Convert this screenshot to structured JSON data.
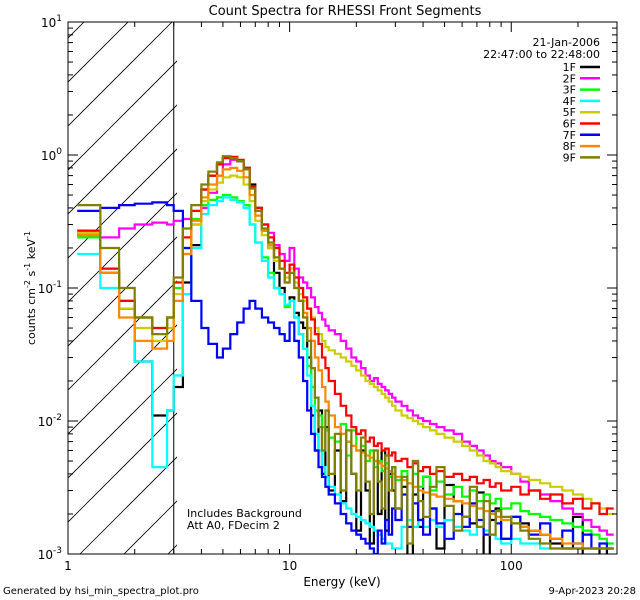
{
  "chart_data": {
    "type": "line",
    "title": "Count Spectra for RHESSI Front Segments",
    "xlabel": "Energy (keV)",
    "ylabel_parts": {
      "base": "counts cm",
      "exp1": "-2",
      "mid": " s",
      "exp2": "-1",
      "end": " keV",
      "exp3": "-1"
    },
    "x_scale": "log",
    "y_scale": "log",
    "xlim": [
      1,
      300
    ],
    "ylim": [
      0.001,
      10
    ],
    "x_ticks": [
      {
        "value": 1,
        "label": "1"
      },
      {
        "value": 10,
        "label": "10"
      },
      {
        "value": 100,
        "label": "100"
      }
    ],
    "y_ticks": [
      {
        "value": 0.001,
        "base": "10",
        "exp": "-3"
      },
      {
        "value": 0.01,
        "base": "10",
        "exp": "-2"
      },
      {
        "value": 0.1,
        "base": "10",
        "exp": "-1"
      },
      {
        "value": 1,
        "base": "10",
        "exp": "0"
      },
      {
        "value": 10,
        "base": "10",
        "exp": "1"
      }
    ],
    "hatched_region_xmax": 3,
    "date_label": "21-Jan-2006",
    "time_label": "22:47:00 to 22:48:00",
    "annotations": [
      "Includes Background",
      "Att A0, FDecim 2"
    ],
    "footer_left": "Generated by hsi_min_spectra_plot.pro",
    "footer_right": "9-Apr-2023 20:28",
    "energy_edges": [
      1.1,
      1.4,
      1.7,
      2.0,
      2.4,
      2.8,
      3.0,
      3.3,
      3.6,
      4.0,
      4.3,
      4.7,
      5.0,
      5.4,
      5.8,
      6.2,
      6.6,
      7.0,
      7.5,
      8.0,
      8.5,
      9.0,
      9.5,
      10.0,
      10.5,
      11.0,
      11.5,
      12.0,
      12.5,
      13.0,
      13.5,
      14.0,
      14.5,
      15.0,
      16.0,
      17.0,
      18.0,
      19.0,
      20.0,
      21.0,
      22.0,
      23.0,
      24.0,
      25.0,
      26.0,
      27.0,
      28.0,
      29.0,
      30.0,
      32.0,
      34.0,
      36.0,
      38.0,
      40.0,
      43.0,
      46.0,
      50.0,
      55.0,
      60.0,
      65.0,
      70.0,
      75.0,
      80.0,
      85.0,
      90.0,
      100.0,
      110.0,
      120.0,
      135.0,
      150.0,
      170.0,
      190.0,
      210.0,
      230.0,
      250.0,
      270.0,
      290.0
    ],
    "series": [
      {
        "name": "1F",
        "color": "#000000",
        "values": [
          0.25,
          0.13,
          0.07,
          0.028,
          0.011,
          0.012,
          0.018,
          0.11,
          0.21,
          0.55,
          0.7,
          0.85,
          0.95,
          0.96,
          0.9,
          0.8,
          0.6,
          0.4,
          0.27,
          0.2,
          0.13,
          0.1,
          0.075,
          0.085,
          0.065,
          0.055,
          0.05,
          0.03,
          0.011,
          0.006,
          0.012,
          0.004,
          0.009,
          0.003,
          0.006,
          0.0025,
          0.007,
          0.004,
          0.0015,
          0.006,
          0.003,
          0.0012,
          0.005,
          0.002,
          0.006,
          0.0015,
          0.004,
          0.003,
          0.0022,
          0.0032,
          0.0009,
          0.0028,
          0.0016,
          0.0038,
          0.0022,
          0.0011,
          0.0033,
          0.0025,
          0.0019,
          0.0017,
          0.0029,
          0.0008,
          0.0018,
          0.0022,
          0.0013,
          0.0019,
          0.0017,
          0.0015,
          0.0014,
          0.0012,
          0.0011,
          0.0019,
          0.0009,
          0.0008,
          0.0011,
          0.0009
        ]
      },
      {
        "name": "2F",
        "color": "#ff00ff",
        "values": [
          0.26,
          0.24,
          0.28,
          0.3,
          0.31,
          0.3,
          0.32,
          0.33,
          0.3,
          0.4,
          0.52,
          0.7,
          0.85,
          0.92,
          0.9,
          0.78,
          0.58,
          0.38,
          0.3,
          0.26,
          0.21,
          0.18,
          0.16,
          0.2,
          0.14,
          0.12,
          0.11,
          0.1,
          0.085,
          0.072,
          0.065,
          0.058,
          0.052,
          0.048,
          0.045,
          0.04,
          0.035,
          0.03,
          0.028,
          0.025,
          0.022,
          0.02,
          0.021,
          0.019,
          0.018,
          0.017,
          0.016,
          0.015,
          0.014,
          0.013,
          0.012,
          0.011,
          0.0105,
          0.01,
          0.0095,
          0.009,
          0.0085,
          0.008,
          0.007,
          0.0065,
          0.006,
          0.0055,
          0.005,
          0.0048,
          0.0045,
          0.004,
          0.0035,
          0.003,
          0.0028,
          0.0025,
          0.0022,
          0.002,
          0.0018,
          0.0016,
          0.0015,
          0.0014
        ]
      },
      {
        "name": "3F",
        "color": "#00ff00",
        "values": [
          0.24,
          0.13,
          0.08,
          0.06,
          0.05,
          0.06,
          0.1,
          0.2,
          0.33,
          0.42,
          0.46,
          0.48,
          0.5,
          0.48,
          0.45,
          0.42,
          0.3,
          0.22,
          0.17,
          0.13,
          0.1,
          0.09,
          0.072,
          0.08,
          0.06,
          0.045,
          0.035,
          0.026,
          0.018,
          0.012,
          0.011,
          0.009,
          0.0085,
          0.0075,
          0.007,
          0.0095,
          0.0055,
          0.0085,
          0.006,
          0.0065,
          0.005,
          0.006,
          0.0045,
          0.005,
          0.0042,
          0.0048,
          0.0038,
          0.0045,
          0.0036,
          0.0042,
          0.0034,
          0.004,
          0.0032,
          0.0038,
          0.003,
          0.0035,
          0.0028,
          0.0032,
          0.0027,
          0.003,
          0.0025,
          0.0028,
          0.0024,
          0.0026,
          0.0022,
          0.0024,
          0.0021,
          0.002,
          0.0019,
          0.0018,
          0.0017,
          0.0016,
          0.0015,
          0.0014,
          0.0013,
          0.0012
        ]
      },
      {
        "name": "4F",
        "color": "#00ffff",
        "values": [
          0.18,
          0.1,
          0.08,
          0.028,
          0.0045,
          0.012,
          0.022,
          0.09,
          0.2,
          0.36,
          0.42,
          0.45,
          0.48,
          0.46,
          0.44,
          0.4,
          0.3,
          0.22,
          0.16,
          0.12,
          0.1,
          0.09,
          0.075,
          0.08,
          0.06,
          0.045,
          0.035,
          0.022,
          0.013,
          0.008,
          0.006,
          0.0045,
          0.0038,
          0.0032,
          0.0028,
          0.0024,
          0.0022,
          0.002,
          0.0019,
          0.0018,
          0.0017,
          0.0016,
          0.0015,
          0.0014,
          0.0013,
          0.0012,
          0.0012,
          0.0011,
          0.0011,
          0.0016,
          0.0018,
          0.0016,
          0.0018,
          0.0016,
          0.0018,
          0.0016,
          0.0018,
          0.0016,
          0.0015,
          0.0014,
          0.0016,
          0.0015,
          0.0014,
          0.0013,
          0.0012,
          0.0013,
          0.0012,
          0.0012,
          0.0011,
          0.0011,
          0.0011,
          0.0011,
          0.0011,
          0.0011,
          0.0011,
          0.0011
        ]
      },
      {
        "name": "5F",
        "color": "#cccc00",
        "values": [
          0.26,
          0.14,
          0.07,
          0.05,
          0.04,
          0.05,
          0.09,
          0.18,
          0.3,
          0.45,
          0.55,
          0.62,
          0.68,
          0.7,
          0.68,
          0.6,
          0.45,
          0.32,
          0.25,
          0.2,
          0.16,
          0.14,
          0.12,
          0.14,
          0.11,
          0.09,
          0.08,
          0.07,
          0.06,
          0.05,
          0.045,
          0.04,
          0.036,
          0.034,
          0.032,
          0.03,
          0.028,
          0.026,
          0.024,
          0.022,
          0.02,
          0.019,
          0.018,
          0.017,
          0.016,
          0.015,
          0.014,
          0.013,
          0.012,
          0.011,
          0.0105,
          0.01,
          0.0095,
          0.009,
          0.0085,
          0.008,
          0.0075,
          0.007,
          0.0065,
          0.006,
          0.0055,
          0.005,
          0.0048,
          0.0045,
          0.0042,
          0.004,
          0.0038,
          0.0036,
          0.0034,
          0.0032,
          0.003,
          0.0028,
          0.0026,
          0.0024,
          0.0022,
          0.002
        ]
      },
      {
        "name": "6F",
        "color": "#ff0000",
        "values": [
          0.27,
          0.14,
          0.08,
          0.06,
          0.05,
          0.06,
          0.11,
          0.24,
          0.38,
          0.55,
          0.7,
          0.85,
          0.95,
          0.97,
          0.92,
          0.8,
          0.58,
          0.4,
          0.3,
          0.24,
          0.2,
          0.16,
          0.13,
          0.15,
          0.12,
          0.1,
          0.085,
          0.07,
          0.058,
          0.045,
          0.038,
          0.03,
          0.025,
          0.02,
          0.016,
          0.013,
          0.011,
          0.009,
          0.008,
          0.0085,
          0.007,
          0.0075,
          0.0065,
          0.0068,
          0.006,
          0.0062,
          0.0055,
          0.0058,
          0.005,
          0.0052,
          0.0045,
          0.0048,
          0.0042,
          0.0045,
          0.004,
          0.0042,
          0.0038,
          0.004,
          0.0036,
          0.0038,
          0.0034,
          0.0036,
          0.0032,
          0.0034,
          0.003,
          0.0032,
          0.0028,
          0.003,
          0.0026,
          0.0028,
          0.0024,
          0.0026,
          0.0022,
          0.0024,
          0.002,
          0.0022
        ]
      },
      {
        "name": "7F",
        "color": "#0000ff",
        "values": [
          0.38,
          0.4,
          0.42,
          0.43,
          0.44,
          0.42,
          0.38,
          0.2,
          0.08,
          0.05,
          0.038,
          0.03,
          0.035,
          0.045,
          0.055,
          0.07,
          0.08,
          0.07,
          0.06,
          0.055,
          0.05,
          0.045,
          0.04,
          0.055,
          0.04,
          0.03,
          0.02,
          0.012,
          0.008,
          0.006,
          0.0045,
          0.0038,
          0.0032,
          0.0028,
          0.0024,
          0.002,
          0.0017,
          0.0015,
          0.0014,
          0.0013,
          0.0012,
          0.0011,
          0.001,
          0.0015,
          0.0012,
          0.0018,
          0.0014,
          0.0022,
          0.0018,
          0.0028,
          0.0016,
          0.0024,
          0.0018,
          0.0014,
          0.0022,
          0.0017,
          0.0013,
          0.002,
          0.0016,
          0.0024,
          0.0018,
          0.0014,
          0.0021,
          0.0017,
          0.0013,
          0.0019,
          0.0016,
          0.0014,
          0.0017,
          0.0013,
          0.0015,
          0.0012,
          0.0014,
          0.0011,
          0.0012,
          0.0011
        ]
      },
      {
        "name": "8F",
        "color": "#ff8800",
        "values": [
          0.25,
          0.13,
          0.06,
          0.04,
          0.035,
          0.04,
          0.08,
          0.18,
          0.32,
          0.48,
          0.6,
          0.7,
          0.78,
          0.8,
          0.76,
          0.68,
          0.5,
          0.35,
          0.27,
          0.21,
          0.17,
          0.14,
          0.11,
          0.13,
          0.1,
          0.08,
          0.065,
          0.05,
          0.04,
          0.03,
          0.024,
          0.018,
          0.014,
          0.011,
          0.009,
          0.008,
          0.007,
          0.0065,
          0.006,
          0.0058,
          0.0055,
          0.0053,
          0.005,
          0.0048,
          0.0046,
          0.0044,
          0.0042,
          0.004,
          0.0038,
          0.0036,
          0.0034,
          0.0032,
          0.003,
          0.0029,
          0.0028,
          0.0027,
          0.0026,
          0.0025,
          0.0024,
          0.0023,
          0.0022,
          0.0021,
          0.002,
          0.0019,
          0.0018,
          0.0017,
          0.0016,
          0.0015,
          0.0014,
          0.0013,
          0.0012,
          0.0012,
          0.0011,
          0.0011,
          0.0011,
          0.0011
        ]
      },
      {
        "name": "9F",
        "color": "#808000",
        "values": [
          0.42,
          0.2,
          0.1,
          0.06,
          0.045,
          0.06,
          0.12,
          0.28,
          0.42,
          0.6,
          0.75,
          0.88,
          0.98,
          0.95,
          0.9,
          0.78,
          0.56,
          0.38,
          0.28,
          0.22,
          0.17,
          0.14,
          0.11,
          0.13,
          0.1,
          0.08,
          0.06,
          0.04,
          0.025,
          0.015,
          0.009,
          0.006,
          0.012,
          0.004,
          0.008,
          0.003,
          0.0085,
          0.004,
          0.003,
          0.0075,
          0.0035,
          0.002,
          0.006,
          0.0035,
          0.0022,
          0.0055,
          0.003,
          0.0045,
          0.0022,
          0.0038,
          0.0012,
          0.005,
          0.0025,
          0.0019,
          0.0032,
          0.0045,
          0.0023,
          0.0015,
          0.0019,
          0.0032,
          0.0016,
          0.0025,
          0.0014,
          0.0021,
          0.0019,
          0.0017,
          0.0015,
          0.0013,
          0.0012,
          0.0011,
          0.0011,
          0.0011,
          0.0011,
          0.0011,
          0.0011,
          0.0011
        ]
      }
    ]
  }
}
